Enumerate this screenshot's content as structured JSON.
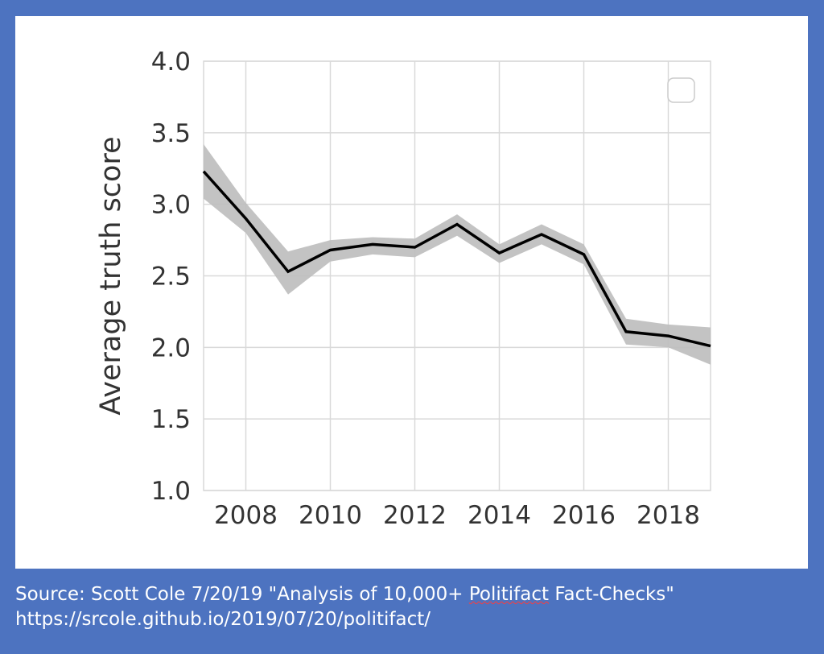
{
  "chart_data": {
    "type": "line",
    "title": "",
    "xlabel": "",
    "ylabel": "Average truth score",
    "xlim": [
      2007,
      2019
    ],
    "ylim": [
      1.0,
      4.0
    ],
    "x_ticks": [
      "2008",
      "2010",
      "2012",
      "2014",
      "2016",
      "2018"
    ],
    "y_ticks": [
      "1.0",
      "1.5",
      "2.0",
      "2.5",
      "3.0",
      "3.5",
      "4.0"
    ],
    "grid": true,
    "legend": {
      "placement": "top-right",
      "entries": []
    },
    "series": [
      {
        "x": [
          2007,
          2008,
          2009,
          2010,
          2011,
          2012,
          2013,
          2014,
          2015,
          2016,
          2017,
          2018,
          2019
        ],
        "values": [
          3.23,
          2.9,
          2.53,
          2.68,
          2.72,
          2.7,
          2.86,
          2.66,
          2.79,
          2.65,
          2.11,
          2.08,
          2.01
        ],
        "ci_upper": [
          3.42,
          3.01,
          2.67,
          2.75,
          2.77,
          2.76,
          2.93,
          2.72,
          2.86,
          2.72,
          2.2,
          2.16,
          2.14
        ],
        "ci_lower": [
          3.04,
          2.8,
          2.37,
          2.6,
          2.65,
          2.63,
          2.78,
          2.59,
          2.72,
          2.58,
          2.02,
          2.0,
          1.88
        ],
        "line_color": "#000000",
        "band_color": "#bdbdbd"
      }
    ]
  },
  "caption": {
    "line1_prefix": "Source: Scott Cole 7/20/19 \"Analysis of 10,000+ ",
    "line1_flagged": "Politifact",
    "line1_suffix": " Fact-Checks\"",
    "line2": "https://srcole.github.io/2019/07/20/politifact/"
  },
  "colors": {
    "background": "#4d73c0",
    "panel": "#ffffff",
    "grid": "#d9d9d9",
    "text": "#333333"
  }
}
